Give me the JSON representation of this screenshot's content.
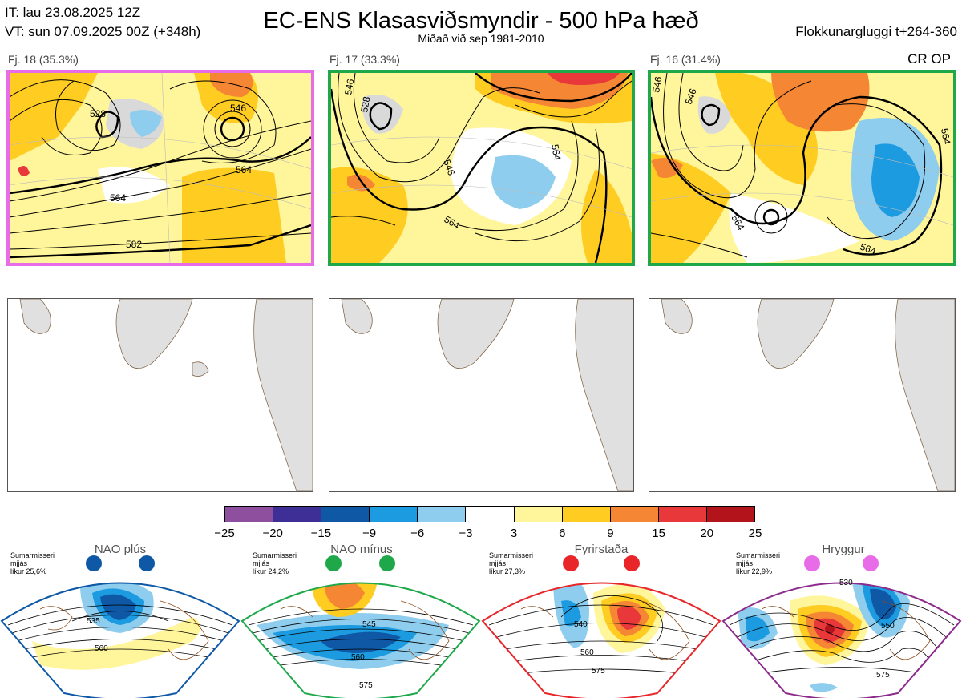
{
  "header": {
    "it": "IT: lau 23.08.2025 12Z",
    "vt": "VT: sun 07.09.2025 00Z  (+348h)",
    "title": "EC-ENS Klasasviðsmyndir - 500 hPa hæð",
    "subtitle": "Miðað við sep 1981-2010",
    "window": "Flokkunargluggi t+264-360",
    "cr_op": "CR OP"
  },
  "panels": [
    {
      "label": "Fj. 18 (35.3%)",
      "border_color": "#e86ce8",
      "contours": [
        "546",
        "528",
        "564",
        "564",
        "582"
      ]
    },
    {
      "label": "Fj. 17 (33.3%)",
      "border_color": "#1ea84a",
      "contours": [
        "546",
        "528",
        "564",
        "546",
        "564"
      ]
    },
    {
      "label": "Fj. 16 (31.4%)",
      "border_color": "#1ea84a",
      "contours": [
        "546",
        "546",
        "564",
        "564",
        "564"
      ]
    }
  ],
  "colorbar": {
    "colors": [
      "#8e4f9f",
      "#3e2f96",
      "#0f58a6",
      "#1c9be0",
      "#8fcdee",
      "#ffffff",
      "#fff59a",
      "#ffcc22",
      "#f58634",
      "#e8383a",
      "#b3141c"
    ],
    "ticks": [
      "−25",
      "−20",
      "−15",
      "−9",
      "−6",
      "−3",
      "3",
      "6",
      "9",
      "15",
      "20",
      "25"
    ]
  },
  "regimes": [
    {
      "title": "NAO plús",
      "note": [
        "Sumarmisseri",
        "mjjás",
        "líkur 25,6%"
      ],
      "color": "#0f58a6",
      "labels": [
        "535",
        "560"
      ]
    },
    {
      "title": "NAO mínus",
      "note": [
        "Sumarmisseri",
        "mjjás",
        "líkur 24,2%"
      ],
      "color": "#1ea84a",
      "labels": [
        "545",
        "560",
        "575"
      ]
    },
    {
      "title": "Fyrirstaða",
      "note": [
        "Sumarmisseri",
        "mjjás",
        "líkur 27,3%"
      ],
      "color": "#e8262a",
      "labels": [
        "540",
        "560",
        "575"
      ]
    },
    {
      "title": "Hryggur",
      "note": [
        "Sumarmisseri",
        "mjjás",
        "líkur 22,9%"
      ],
      "color": "#e86ce8",
      "labels": [
        "530",
        "550",
        "575"
      ]
    }
  ]
}
